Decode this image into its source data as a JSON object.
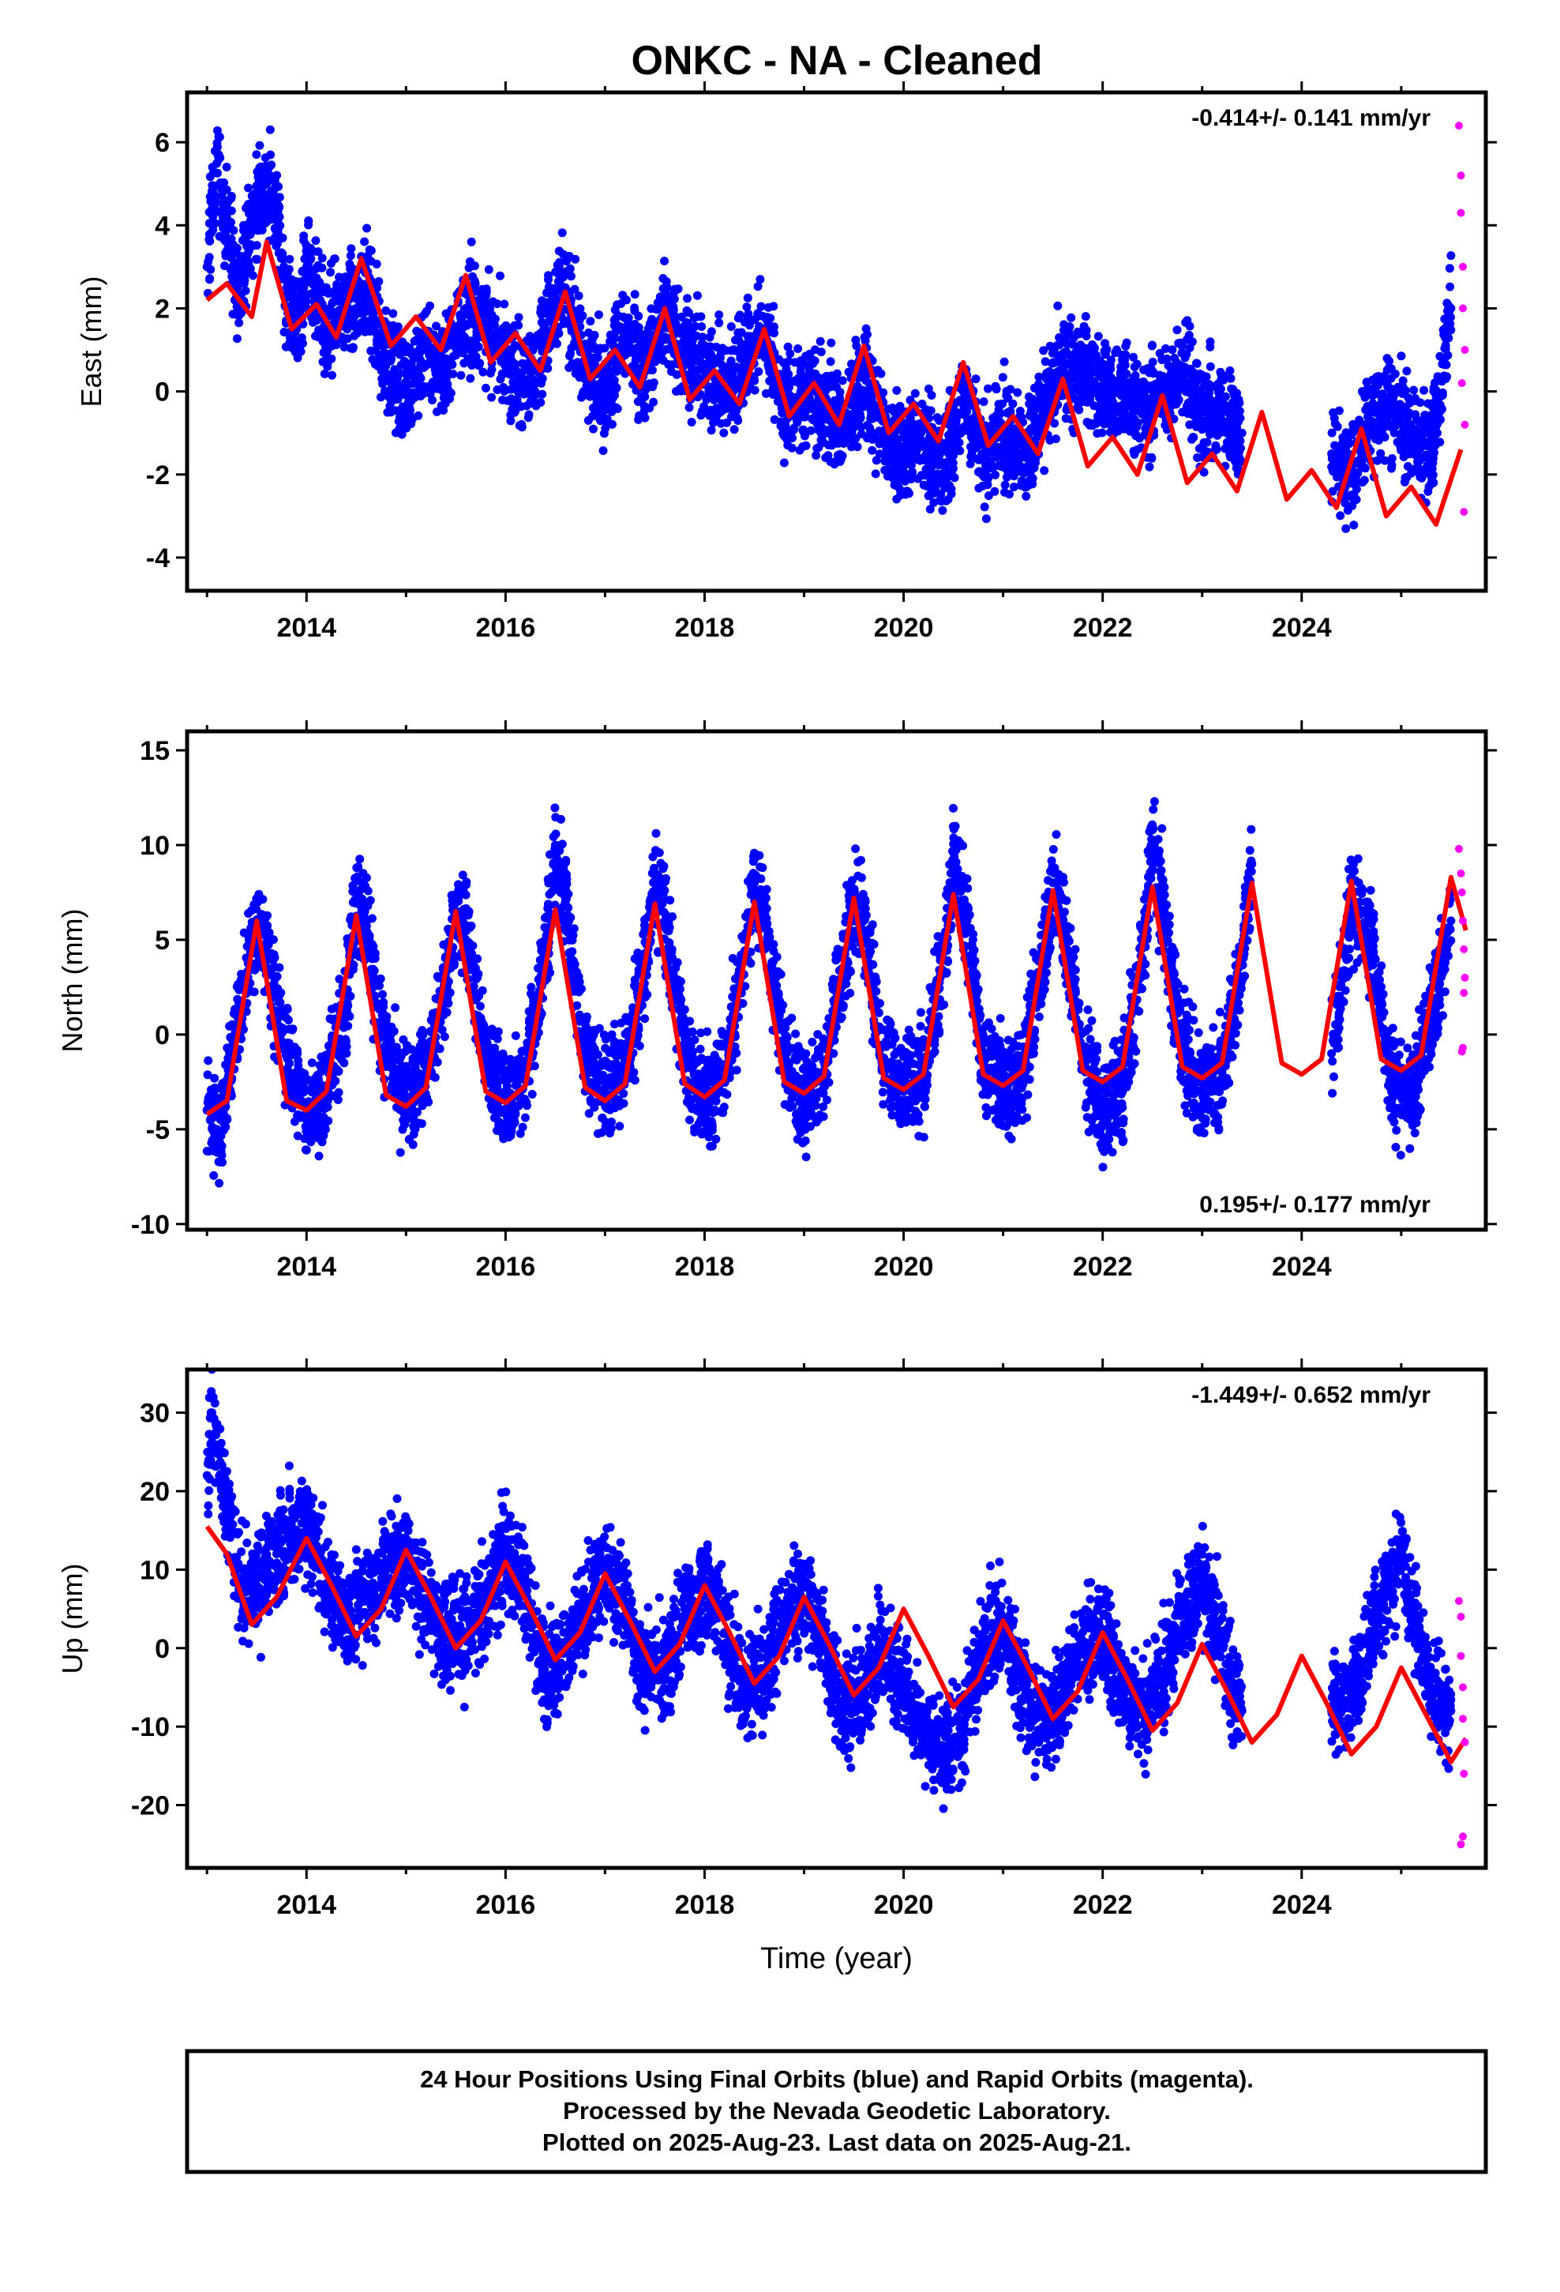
{
  "title": "ONKC  - NA - Cleaned",
  "colors": {
    "final": "#0000ff",
    "rapid": "#ff00ff",
    "model": "#ff0000",
    "frame": "#000000"
  },
  "chart_data": [
    {
      "type": "scatter",
      "ylabel": "East (mm)",
      "xlabel": "",
      "rate_text": "-0.414+/- 0.141 mm/yr",
      "rate_position": "top-right",
      "xlim": [
        2012.8,
        2025.85
      ],
      "ylim": [
        -4.8,
        7.2
      ],
      "x_ticks": [
        2014,
        2016,
        2018,
        2020,
        2022,
        2024
      ],
      "y_ticks": [
        -4,
        -2,
        0,
        2,
        4,
        6
      ],
      "series": [
        {
          "kind": "final_points",
          "x": [
            2013.0,
            2013.1,
            2013.2,
            2013.3,
            2013.4,
            2013.5,
            2013.6,
            2013.7,
            2013.8,
            2013.9,
            2014.0,
            2014.2,
            2014.4,
            2014.6,
            2014.8,
            2015.0,
            2015.2,
            2015.4,
            2015.6,
            2015.8,
            2016.0,
            2016.2,
            2016.4,
            2016.6,
            2016.8,
            2017.0,
            2017.2,
            2017.4,
            2017.6,
            2017.8,
            2018.0,
            2018.2,
            2018.4,
            2018.6,
            2018.8,
            2019.0,
            2019.2,
            2019.4,
            2019.6,
            2019.8,
            2020.0,
            2020.2,
            2020.4,
            2020.6,
            2020.8,
            2021.0,
            2021.2,
            2021.4,
            2021.6,
            2021.8,
            2022.0,
            2022.2,
            2022.4,
            2022.6,
            2022.8,
            2023.0,
            2023.2,
            2023.4,
            2024.3,
            2024.5,
            2024.7,
            2024.9,
            2025.1,
            2025.3,
            2025.5
          ],
          "y": [
            3.0,
            5.5,
            4.0,
            2.5,
            3.5,
            4.5,
            5.0,
            4.2,
            2.5,
            1.5,
            3.0,
            1.5,
            2.0,
            2.5,
            0.8,
            0.0,
            1.0,
            0.5,
            2.0,
            1.5,
            1.0,
            0.0,
            1.5,
            2.5,
            0.5,
            0.0,
            1.5,
            0.5,
            1.8,
            1.0,
            0.5,
            0.0,
            0.8,
            1.5,
            -0.5,
            0.0,
            -0.5,
            -0.8,
            0.5,
            -1.0,
            -1.5,
            -1.2,
            -2.0,
            0.0,
            -1.5,
            -1.0,
            -1.5,
            -0.5,
            0.5,
            0.5,
            0.0,
            0.0,
            -0.5,
            0.0,
            0.5,
            -0.5,
            -0.5,
            -1.0,
            -1.5,
            -2.0,
            -0.5,
            -0.5,
            -1.0,
            -1.5,
            2.0
          ]
        },
        {
          "kind": "rapid_points",
          "x": [
            2025.58,
            2025.6,
            2025.6,
            2025.62,
            2025.62,
            2025.64,
            2025.64,
            2025.63,
            2025.61
          ],
          "y": [
            6.4,
            5.2,
            4.3,
            3.0,
            2.0,
            1.0,
            -0.8,
            -2.9,
            0.2
          ]
        },
        {
          "kind": "model_line",
          "x": [
            2013.0,
            2013.2,
            2013.45,
            2013.6,
            2013.85,
            2014.1,
            2014.3,
            2014.55,
            2014.85,
            2015.1,
            2015.35,
            2015.6,
            2015.85,
            2016.1,
            2016.35,
            2016.6,
            2016.85,
            2017.1,
            2017.35,
            2017.6,
            2017.85,
            2018.1,
            2018.35,
            2018.6,
            2018.85,
            2019.1,
            2019.35,
            2019.6,
            2019.85,
            2020.1,
            2020.35,
            2020.6,
            2020.85,
            2021.1,
            2021.35,
            2021.6,
            2021.85,
            2022.1,
            2022.35,
            2022.6,
            2022.85,
            2023.1,
            2023.35,
            2023.6,
            2023.85,
            2024.1,
            2024.35,
            2024.6,
            2024.85,
            2025.1,
            2025.35,
            2025.6
          ],
          "y": [
            2.2,
            2.6,
            1.8,
            3.6,
            1.5,
            2.1,
            1.3,
            3.2,
            1.1,
            1.8,
            1.0,
            2.8,
            0.7,
            1.4,
            0.5,
            2.4,
            0.3,
            1.0,
            0.1,
            2.0,
            -0.2,
            0.5,
            -0.3,
            1.5,
            -0.6,
            0.2,
            -0.8,
            1.1,
            -1.0,
            -0.3,
            -1.2,
            0.7,
            -1.3,
            -0.6,
            -1.5,
            0.3,
            -1.8,
            -1.1,
            -2.0,
            -0.1,
            -2.2,
            -1.5,
            -2.4,
            -0.5,
            -2.6,
            -1.9,
            -2.8,
            -0.9,
            -3.0,
            -2.3,
            -3.2,
            -1.4
          ]
        }
      ]
    },
    {
      "type": "scatter",
      "ylabel": "North (mm)",
      "xlabel": "",
      "rate_text": "0.195+/- 0.177 mm/yr",
      "rate_position": "bottom-right",
      "xlim": [
        2012.8,
        2025.85
      ],
      "ylim": [
        -10.3,
        16.0
      ],
      "x_ticks": [
        2014,
        2016,
        2018,
        2020,
        2022,
        2024
      ],
      "y_ticks": [
        -10,
        -5,
        0,
        5,
        10,
        15
      ],
      "series": [
        {
          "kind": "final_points",
          "x": [
            2013.0,
            2013.1,
            2013.2,
            2013.3,
            2013.4,
            2013.5,
            2013.6,
            2013.8,
            2014.0,
            2014.2,
            2014.4,
            2014.5,
            2014.6,
            2014.8,
            2015.0,
            2015.2,
            2015.4,
            2015.5,
            2015.6,
            2015.8,
            2016.0,
            2016.2,
            2016.4,
            2016.5,
            2016.6,
            2016.8,
            2017.0,
            2017.2,
            2017.4,
            2017.5,
            2017.6,
            2017.8,
            2018.0,
            2018.2,
            2018.4,
            2018.5,
            2018.6,
            2018.8,
            2019.0,
            2019.2,
            2019.4,
            2019.5,
            2019.6,
            2019.8,
            2020.0,
            2020.2,
            2020.4,
            2020.5,
            2020.6,
            2020.8,
            2021.0,
            2021.2,
            2021.4,
            2021.5,
            2021.6,
            2021.8,
            2022.0,
            2022.2,
            2022.4,
            2022.5,
            2022.6,
            2022.8,
            2023.0,
            2023.2,
            2023.4,
            2023.5,
            2024.3,
            2024.5,
            2024.7,
            2024.9,
            2025.1,
            2025.3,
            2025.5
          ],
          "y": [
            -4.0,
            -5.0,
            -3.0,
            0.5,
            3.0,
            6.0,
            4.0,
            -1.0,
            -4.5,
            -3.0,
            2.0,
            7.0,
            6.0,
            -1.0,
            -3.5,
            -2.0,
            3.0,
            6.5,
            5.5,
            -1.0,
            -3.5,
            -2.0,
            4.0,
            10.0,
            7.0,
            -1.0,
            -3.0,
            -1.5,
            3.5,
            8.0,
            6.0,
            -1.0,
            -3.5,
            -2.0,
            4.0,
            8.0,
            6.5,
            -1.0,
            -3.5,
            -2.0,
            4.0,
            7.5,
            6.0,
            -1.5,
            -3.0,
            -2.0,
            4.0,
            9.0,
            7.0,
            -1.0,
            -3.0,
            -2.0,
            4.0,
            8.0,
            6.0,
            -1.0,
            -4.0,
            -3.0,
            4.0,
            10.0,
            7.0,
            -1.0,
            -3.0,
            -2.0,
            4.0,
            9.0,
            -1.0,
            7.0,
            5.0,
            -2.5,
            -3.0,
            1.0,
            6.0
          ]
        },
        {
          "kind": "rapid_points",
          "x": [
            2025.58,
            2025.6,
            2025.61,
            2025.62,
            2025.63,
            2025.64,
            2025.63,
            2025.62,
            2025.61
          ],
          "y": [
            9.8,
            8.5,
            7.5,
            6.0,
            4.5,
            3.0,
            2.2,
            -0.7,
            -0.9
          ]
        },
        {
          "kind": "model_line",
          "x": [
            2013.0,
            2013.2,
            2013.5,
            2013.8,
            2014.0,
            2014.2,
            2014.5,
            2014.8,
            2015.0,
            2015.2,
            2015.5,
            2015.8,
            2016.0,
            2016.2,
            2016.5,
            2016.8,
            2017.0,
            2017.2,
            2017.5,
            2017.8,
            2018.0,
            2018.2,
            2018.5,
            2018.8,
            2019.0,
            2019.2,
            2019.5,
            2019.8,
            2020.0,
            2020.2,
            2020.5,
            2020.8,
            2021.0,
            2021.2,
            2021.5,
            2021.8,
            2022.0,
            2022.2,
            2022.5,
            2022.8,
            2023.0,
            2023.2,
            2023.5,
            2023.8,
            2024.0,
            2024.2,
            2024.5,
            2024.8,
            2025.0,
            2025.2,
            2025.5,
            2025.65
          ],
          "y": [
            -4.2,
            -3.5,
            6.0,
            -3.5,
            -4.0,
            -3.0,
            6.3,
            -3.2,
            -3.8,
            -2.8,
            6.5,
            -3.0,
            -3.6,
            -2.7,
            6.6,
            -2.8,
            -3.5,
            -2.6,
            6.9,
            -2.6,
            -3.3,
            -2.4,
            7.0,
            -2.5,
            -3.1,
            -2.2,
            7.2,
            -2.3,
            -2.9,
            -2.1,
            7.4,
            -2.1,
            -2.7,
            -1.9,
            7.6,
            -1.9,
            -2.5,
            -1.7,
            7.8,
            -1.7,
            -2.3,
            -1.5,
            8.0,
            -1.5,
            -2.1,
            -1.3,
            8.1,
            -1.3,
            -1.9,
            -1.1,
            8.3,
            5.5
          ]
        }
      ]
    },
    {
      "type": "scatter",
      "ylabel": "Up (mm)",
      "xlabel": "Time (year)",
      "rate_text": "-1.449+/- 0.652 mm/yr",
      "rate_position": "top-right",
      "xlim": [
        2012.8,
        2025.85
      ],
      "ylim": [
        -28.0,
        35.5
      ],
      "x_ticks": [
        2014,
        2016,
        2018,
        2020,
        2022,
        2024
      ],
      "y_ticks": [
        -20,
        -10,
        0,
        10,
        20,
        30
      ],
      "series": [
        {
          "kind": "final_points",
          "x": [
            2013.0,
            2013.05,
            2013.1,
            2013.2,
            2013.3,
            2013.4,
            2013.5,
            2013.6,
            2013.7,
            2013.8,
            2013.9,
            2014.0,
            2014.1,
            2014.2,
            2014.4,
            2014.6,
            2014.8,
            2015.0,
            2015.2,
            2015.4,
            2015.6,
            2015.8,
            2016.0,
            2016.2,
            2016.4,
            2016.6,
            2016.8,
            2017.0,
            2017.2,
            2017.4,
            2017.6,
            2017.8,
            2018.0,
            2018.2,
            2018.4,
            2018.6,
            2018.8,
            2019.0,
            2019.2,
            2019.4,
            2019.6,
            2019.8,
            2020.0,
            2020.2,
            2020.4,
            2020.6,
            2020.8,
            2021.0,
            2021.2,
            2021.4,
            2021.6,
            2021.8,
            2022.0,
            2022.2,
            2022.4,
            2022.6,
            2022.8,
            2023.0,
            2023.2,
            2023.4,
            2024.3,
            2024.5,
            2024.7,
            2024.9,
            2025.0,
            2025.3,
            2025.5
          ],
          "y": [
            22.0,
            30.0,
            25.0,
            18.0,
            10.0,
            6.0,
            8.0,
            10.0,
            12.0,
            14.0,
            15.0,
            16.0,
            12.0,
            8.0,
            4.0,
            6.0,
            10.0,
            12.0,
            6.0,
            2.0,
            2.0,
            6.0,
            12.0,
            8.0,
            -4.0,
            0.0,
            5.0,
            10.0,
            6.0,
            -3.0,
            -2.0,
            4.0,
            8.0,
            2.0,
            -6.0,
            -3.0,
            4.0,
            8.0,
            0.0,
            -8.0,
            -5.0,
            0.0,
            -5.0,
            -10.0,
            -14.0,
            -10.0,
            0.0,
            3.0,
            -5.0,
            -10.0,
            -6.0,
            0.0,
            2.0,
            -5.0,
            -8.0,
            -4.0,
            5.0,
            8.0,
            0.0,
            -8.0,
            -8.0,
            -6.0,
            2.0,
            8.0,
            12.0,
            -6.0,
            -8.0
          ]
        },
        {
          "kind": "rapid_points",
          "x": [
            2025.58,
            2025.6,
            2025.6,
            2025.62,
            2025.62,
            2025.64,
            2025.63,
            2025.62,
            2025.6
          ],
          "y": [
            6.0,
            4.0,
            -1.0,
            -5.0,
            -9.0,
            -12.0,
            -16.0,
            -24.0,
            -25.0
          ]
        },
        {
          "kind": "model_line",
          "x": [
            2013.0,
            2013.2,
            2013.45,
            2013.7,
            2014.0,
            2014.25,
            2014.5,
            2014.75,
            2015.0,
            2015.25,
            2015.5,
            2015.75,
            2016.0,
            2016.25,
            2016.5,
            2016.75,
            2017.0,
            2017.25,
            2017.5,
            2017.75,
            2018.0,
            2018.25,
            2018.5,
            2018.75,
            2019.0,
            2019.25,
            2019.5,
            2019.75,
            2020.0,
            2020.25,
            2020.5,
            2020.75,
            2021.0,
            2021.25,
            2021.5,
            2021.75,
            2022.0,
            2022.25,
            2022.5,
            2022.75,
            2023.0,
            2023.25,
            2023.5,
            2023.75,
            2024.0,
            2024.25,
            2024.5,
            2024.75,
            2025.0,
            2025.25,
            2025.5,
            2025.65
          ],
          "y": [
            15.5,
            12.0,
            3.0,
            6.5,
            14.0,
            8.0,
            1.5,
            5.0,
            12.5,
            6.5,
            0.0,
            3.5,
            11.0,
            5.0,
            -1.5,
            2.0,
            9.5,
            3.5,
            -3.0,
            0.5,
            8.0,
            2.0,
            -4.5,
            -1.0,
            6.5,
            0.5,
            -6.0,
            -2.5,
            5.0,
            -1.0,
            -7.5,
            -4.0,
            3.5,
            -2.5,
            -9.0,
            -5.5,
            2.0,
            -4.0,
            -10.5,
            -7.0,
            0.5,
            -5.5,
            -12.0,
            -8.5,
            -1.0,
            -7.0,
            -13.5,
            -10.0,
            -2.5,
            -8.5,
            -14.5,
            -11.5
          ]
        }
      ]
    }
  ],
  "footer": {
    "line1": "24 Hour Positions Using Final Orbits (blue) and Rapid Orbits (magenta).",
    "line2": "Processed by the Nevada Geodetic Laboratory.",
    "line3": "Plotted on 2025-Aug-23. Last data on 2025-Aug-21."
  }
}
